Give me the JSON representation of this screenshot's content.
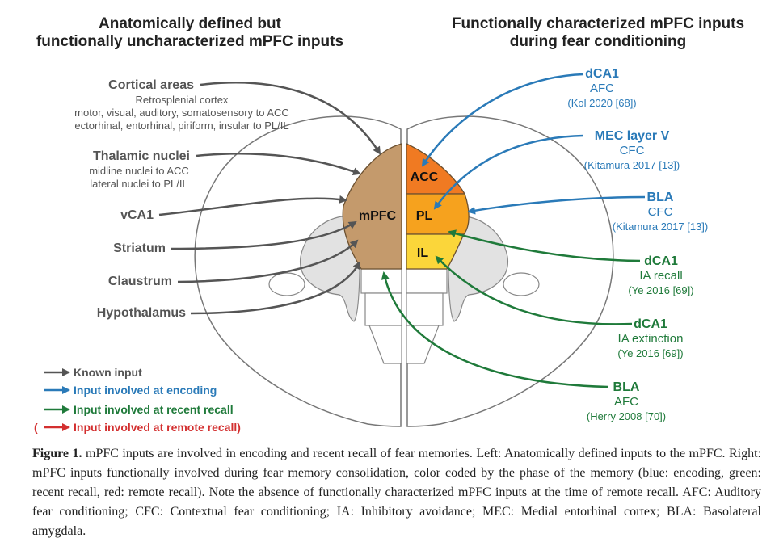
{
  "header_left": [
    "Anatomically defined but",
    "functionally uncharacterized mPFC inputs"
  ],
  "header_right": [
    "Functionally characterized mPFC inputs",
    "during fear conditioning"
  ],
  "left_inputs": [
    {
      "label": "Cortical areas",
      "details": [
        "Retrosplenial cortex",
        "motor, visual, auditory, somatosensory to ACC",
        "ectorhinal, entorhinal, piriform, insular to PL/IL"
      ]
    },
    {
      "label": "Thalamic nuclei",
      "details": [
        "midline nuclei to ACC",
        "lateral nuclei to PL/IL"
      ]
    },
    {
      "label": "vCA1",
      "details": []
    },
    {
      "label": "Striatum",
      "details": []
    },
    {
      "label": "Claustrum",
      "details": []
    },
    {
      "label": "Hypothalamus",
      "details": []
    }
  ],
  "right_inputs": [
    {
      "label": "dCA1",
      "paradigm": "AFC",
      "ref": "(Kol 2020 [68])",
      "phase": "encoding"
    },
    {
      "label": "MEC layer V",
      "paradigm": "CFC",
      "ref": "(Kitamura 2017 [13])",
      "phase": "encoding"
    },
    {
      "label": "BLA",
      "paradigm": "CFC",
      "ref": "(Kitamura 2017 [13])",
      "phase": "encoding"
    },
    {
      "label": "dCA1",
      "paradigm": "IA recall",
      "ref": "(Ye 2016 [69])",
      "phase": "recent recall"
    },
    {
      "label": "dCA1",
      "paradigm": "IA extinction",
      "ref": "(Ye 2016 [69])",
      "phase": "recent recall"
    },
    {
      "label": "BLA",
      "paradigm": "AFC",
      "ref": "(Herry 2008 [70])",
      "phase": "recent recall"
    }
  ],
  "regions": {
    "mpfc": "mPFC",
    "acc": "ACC",
    "pl": "PL",
    "il": "IL"
  },
  "legend": [
    {
      "label": "Known input",
      "prefix": "",
      "suffix": "",
      "color": "#555555"
    },
    {
      "label": "Input involved at encoding",
      "prefix": "",
      "suffix": "",
      "color": "#2a7ab8"
    },
    {
      "label": "Input involved at recent recall",
      "prefix": "",
      "suffix": "",
      "color": "#1f7a3a"
    },
    {
      "label": "Input involved at remote recall",
      "prefix": "(",
      "suffix": ")",
      "color": "#d32f2f"
    }
  ],
  "colors": {
    "known": "#555555",
    "encoding": "#2a7ab8",
    "recent_recall": "#1f7a3a",
    "remote_recall": "#d32f2f",
    "mpfc_fill": "#c49a6c",
    "acc_fill": "#f07a22",
    "pl_fill": "#f6a21e",
    "il_fill": "#fbd63a",
    "brain_gray": "#e2e2e2",
    "outline": "#777777"
  },
  "caption": {
    "label": "Figure 1.",
    "text": " mPFC inputs are involved in encoding and recent recall of fear memories. Left: Anatomically defined inputs to the mPFC. Right: mPFC inputs functionally involved during fear memory consolidation, color coded by the phase of the memory (blue: encoding, green: recent recall, red: remote recall). Note the absence of functionally characterized mPFC inputs at the time of remote recall.  AFC: Auditory fear conditioning; CFC: Contextual fear conditioning; IA: Inhibitory avoidance; MEC: Medial entorhinal cortex; BLA: Basolateral amygdala."
  }
}
